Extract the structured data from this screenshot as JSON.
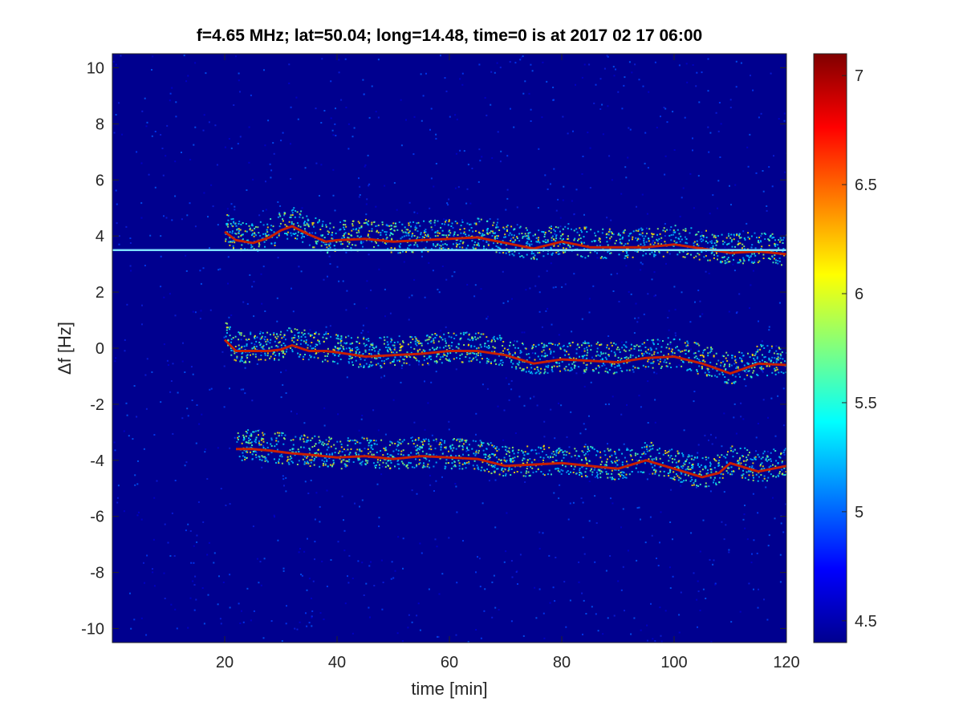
{
  "chart_data": {
    "type": "heatmap",
    "title": "f=4.65 MHz;  lat=50.04; long=14.48, time=0 is at 2017 02 17 06:00",
    "xlabel": "time [min]",
    "ylabel": "Δf [Hz]",
    "xlim": [
      0,
      120
    ],
    "ylim": [
      -10.5,
      10.5
    ],
    "xticks": [
      20,
      40,
      60,
      80,
      100,
      120
    ],
    "yticks": [
      -10,
      -8,
      -6,
      -4,
      -2,
      0,
      2,
      4,
      6,
      8,
      10
    ],
    "colormap": "jet",
    "colorbar": {
      "limits": [
        4.4,
        7.1
      ],
      "ticks": [
        4.5,
        5,
        5.5,
        6,
        6.5,
        7
      ]
    },
    "series": [
      {
        "x": [
          20,
          22,
          25,
          28,
          30,
          32,
          35,
          38,
          40,
          45,
          50,
          55,
          60,
          65,
          70,
          75,
          80,
          85,
          90,
          95,
          100,
          105,
          110,
          115,
          120
        ],
        "y": [
          0.3,
          -0.1,
          -0.1,
          -0.1,
          -0.05,
          0.1,
          -0.1,
          -0.1,
          -0.15,
          -0.3,
          -0.25,
          -0.2,
          -0.1,
          -0.1,
          -0.25,
          -0.55,
          -0.4,
          -0.45,
          -0.5,
          -0.35,
          -0.3,
          -0.55,
          -0.9,
          -0.55,
          -0.6
        ]
      },
      {
        "x": [
          20,
          22,
          25,
          28,
          30,
          32,
          35,
          38,
          40,
          45,
          50,
          55,
          60,
          65,
          70,
          75,
          80,
          85,
          90,
          95,
          100,
          105,
          110,
          115,
          120
        ],
        "y": [
          4.15,
          3.85,
          3.75,
          3.95,
          4.2,
          4.35,
          4.05,
          3.8,
          3.85,
          3.9,
          3.8,
          3.85,
          3.9,
          3.95,
          3.75,
          3.55,
          3.8,
          3.6,
          3.6,
          3.6,
          3.7,
          3.55,
          3.4,
          3.45,
          3.35
        ]
      },
      {
        "x": [
          22,
          25,
          28,
          32,
          35,
          40,
          45,
          50,
          55,
          60,
          65,
          70,
          75,
          80,
          85,
          90,
          95,
          100,
          105,
          108,
          110,
          115,
          120
        ],
        "y": [
          -3.6,
          -3.6,
          -3.65,
          -3.75,
          -3.8,
          -3.9,
          -3.85,
          -3.95,
          -3.85,
          -3.9,
          -3.95,
          -4.2,
          -4.15,
          -4.1,
          -4.2,
          -4.3,
          -4.0,
          -4.3,
          -4.6,
          -4.45,
          -4.1,
          -4.4,
          -4.2
        ]
      },
      {
        "x": [
          0,
          120
        ],
        "y": [
          3.5,
          3.5
        ]
      }
    ]
  }
}
